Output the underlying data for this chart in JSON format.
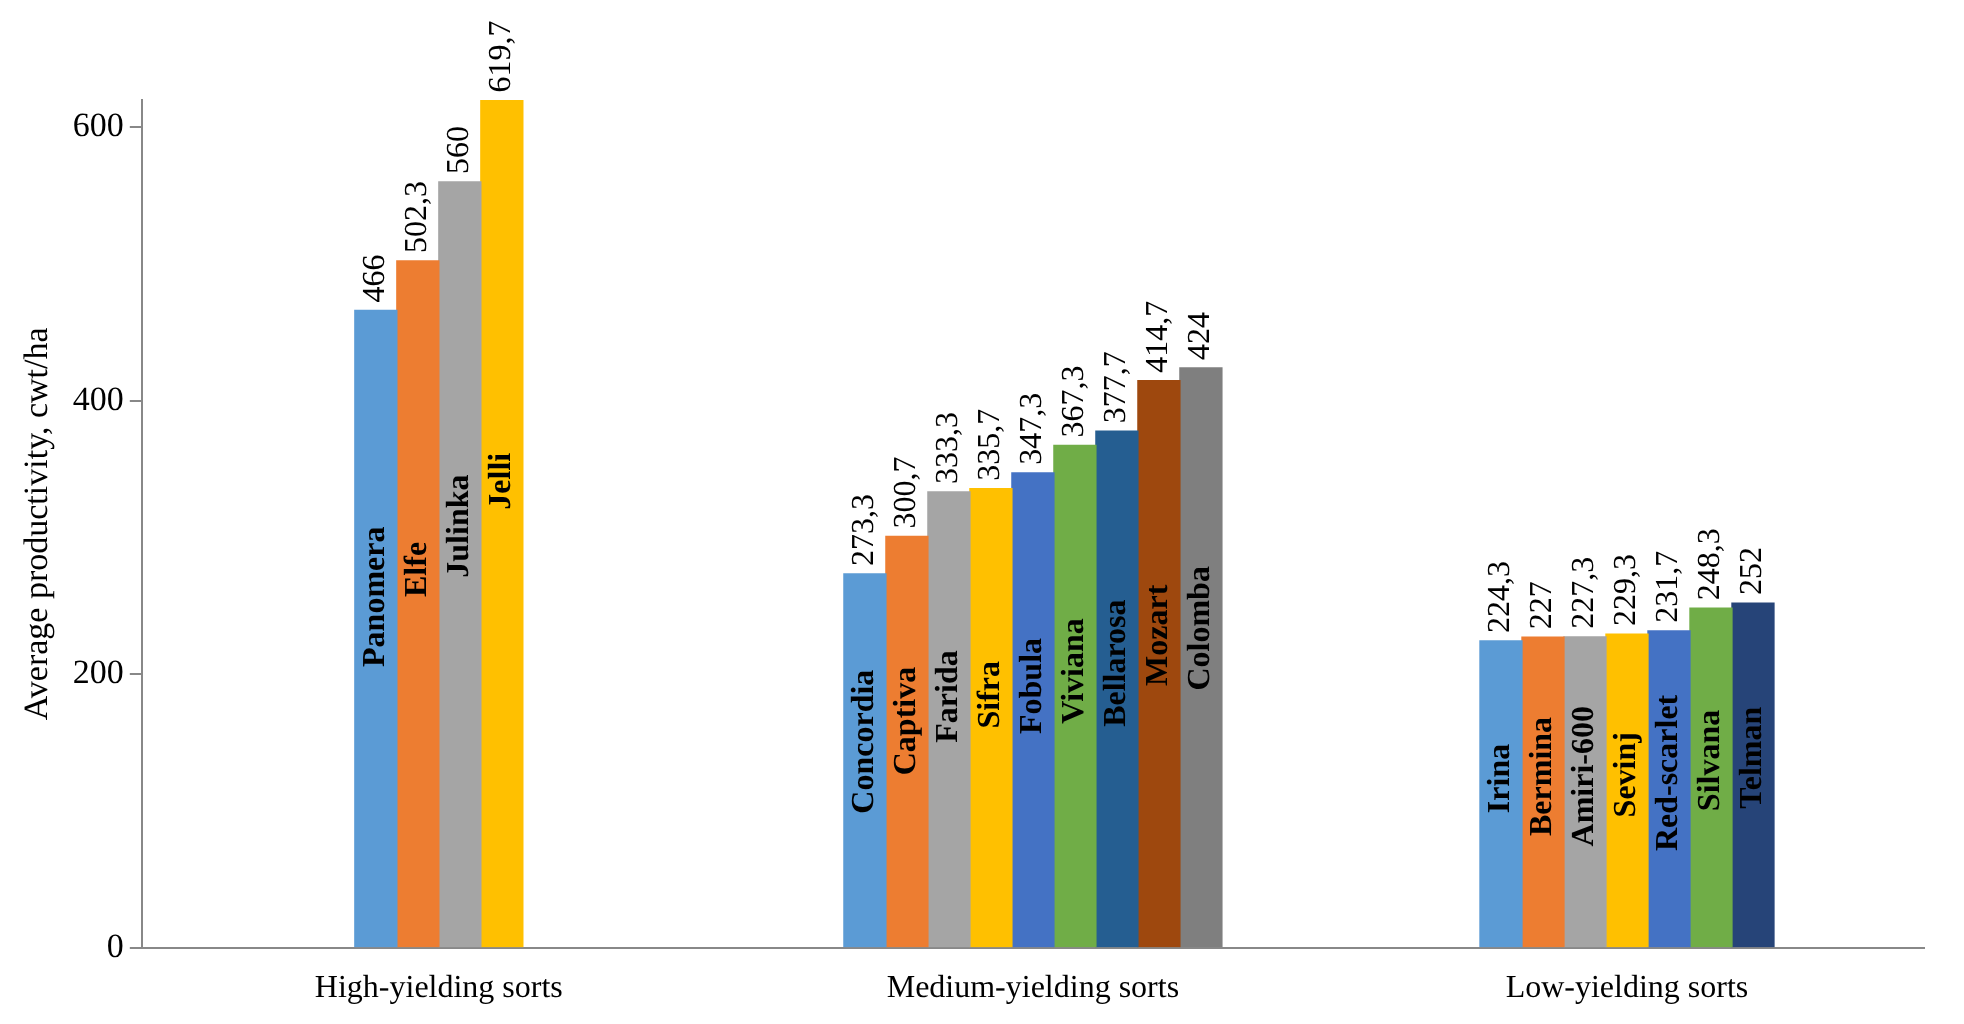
{
  "chart_data": {
    "type": "bar",
    "ylabel": "Average productivity, cwt/ha",
    "categories": [
      "High-yielding sorts",
      "Medium-yielding sorts",
      "Low-yielding sorts"
    ],
    "ylim": [
      0,
      620
    ],
    "yticks": [
      0,
      200,
      400,
      600
    ],
    "grid": false,
    "legend": false,
    "series": [
      {
        "name": "Panomera",
        "color": "#5b9bd5",
        "values": [
          466,
          null,
          null
        ],
        "value_labels": [
          "466",
          null,
          null
        ]
      },
      {
        "name": "Elfe",
        "color": "#ed7d31",
        "values": [
          502.3,
          null,
          null
        ],
        "value_labels": [
          "502,3",
          null,
          null
        ]
      },
      {
        "name": "Julinka",
        "color": "#a5a5a5",
        "values": [
          560,
          null,
          null
        ],
        "value_labels": [
          "560",
          null,
          null
        ]
      },
      {
        "name": "Jelli",
        "color": "#ffc000",
        "values": [
          619.7,
          null,
          null
        ],
        "value_labels": [
          "619,7",
          null,
          null
        ]
      },
      {
        "name": "Concordia",
        "color": "#5b9bd5",
        "values": [
          null,
          273.3,
          null
        ],
        "value_labels": [
          null,
          "273,3",
          null
        ]
      },
      {
        "name": "Captiva",
        "color": "#ed7d31",
        "values": [
          null,
          300.7,
          null
        ],
        "value_labels": [
          null,
          "300,7",
          null
        ]
      },
      {
        "name": "Farida",
        "color": "#a5a5a5",
        "values": [
          null,
          333.3,
          null
        ],
        "value_labels": [
          null,
          "333,3",
          null
        ]
      },
      {
        "name": "Sifra",
        "color": "#ffc000",
        "values": [
          null,
          335.7,
          null
        ],
        "value_labels": [
          null,
          "335,7",
          null
        ]
      },
      {
        "name": "Fobula",
        "color": "#4472c4",
        "values": [
          null,
          347.3,
          null
        ],
        "value_labels": [
          null,
          "347,3",
          null
        ]
      },
      {
        "name": "Viviana",
        "color": "#70ad47",
        "values": [
          null,
          367.3,
          null
        ],
        "value_labels": [
          null,
          "367,3",
          null
        ]
      },
      {
        "name": "Bellarosa",
        "color": "#255e91",
        "values": [
          null,
          377.7,
          null
        ],
        "value_labels": [
          null,
          "377,7",
          null
        ]
      },
      {
        "name": "Mozart",
        "color": "#9e480e",
        "values": [
          null,
          414.7,
          null
        ],
        "value_labels": [
          null,
          "414,7",
          null
        ]
      },
      {
        "name": "Colomba",
        "color": "#7f7f7f",
        "values": [
          null,
          424,
          null
        ],
        "value_labels": [
          null,
          "424",
          null
        ]
      },
      {
        "name": "Irina",
        "color": "#5b9bd5",
        "values": [
          null,
          null,
          224.3
        ],
        "value_labels": [
          null,
          null,
          "224,3"
        ]
      },
      {
        "name": "Bermina",
        "color": "#ed7d31",
        "values": [
          null,
          null,
          227
        ],
        "value_labels": [
          null,
          null,
          "227"
        ]
      },
      {
        "name": "Amiri-600",
        "color": "#a5a5a5",
        "values": [
          null,
          null,
          227.3
        ],
        "value_labels": [
          null,
          null,
          "227,3"
        ]
      },
      {
        "name": "Sevinj",
        "color": "#ffc000",
        "values": [
          null,
          null,
          229.3
        ],
        "value_labels": [
          null,
          null,
          "229,3"
        ]
      },
      {
        "name": "Red-scarlet",
        "color": "#4472c4",
        "values": [
          null,
          null,
          231.7
        ],
        "value_labels": [
          null,
          null,
          "231,7"
        ]
      },
      {
        "name": "Silvana",
        "color": "#70ad47",
        "values": [
          null,
          null,
          248.3
        ],
        "value_labels": [
          null,
          null,
          "248,3"
        ]
      },
      {
        "name": "Telman",
        "color": "#264478",
        "values": [
          null,
          null,
          252
        ],
        "value_labels": [
          null,
          null,
          "252"
        ]
      }
    ]
  }
}
